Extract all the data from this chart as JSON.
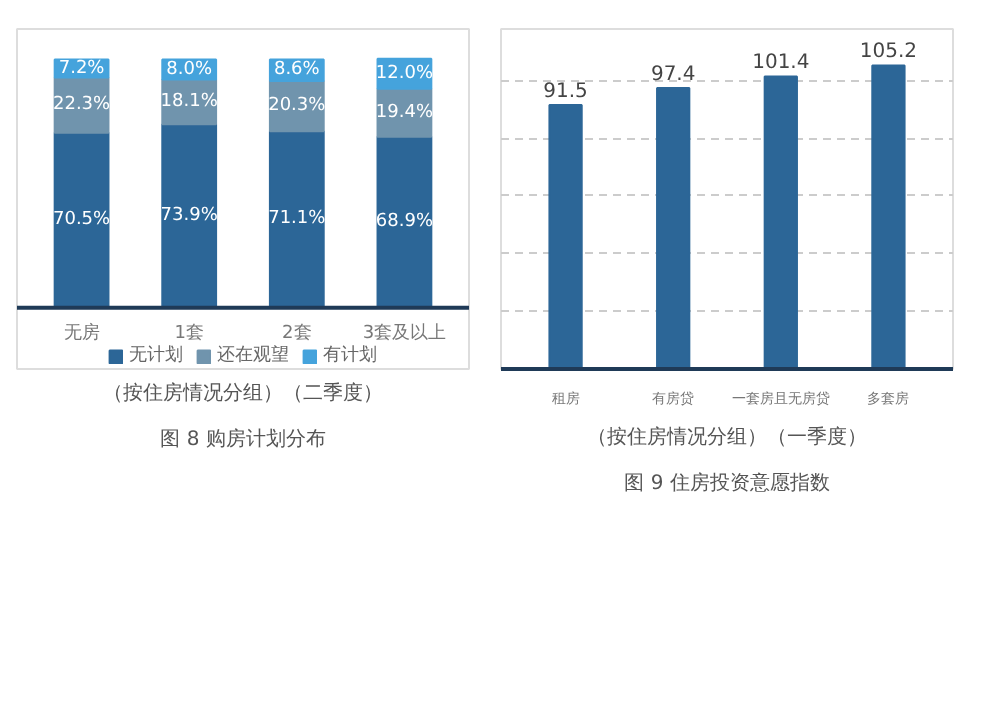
{
  "chart_data": [
    {
      "type": "bar",
      "title": "图 8 购房计划分布",
      "subtitle": "（按住房情况分组）（二季度）",
      "categories": [
        "无房",
        "1套",
        "2套",
        "3套及以上"
      ],
      "stacked": true,
      "legend": "bottom",
      "series": [
        {
          "name": "无计划",
          "color": "#2c6697",
          "values": [
            70.5,
            73.9,
            71.1,
            68.9
          ],
          "value_labels": [
            "70.5%",
            "73.9%",
            "71.1%",
            "68.9%"
          ]
        },
        {
          "name": "还在观望",
          "color": "#7094ad",
          "values": [
            22.3,
            18.1,
            20.3,
            19.4
          ],
          "value_labels": [
            "22.3%",
            "18.1%",
            "20.3%",
            "19.4%"
          ]
        },
        {
          "name": "有计划",
          "color": "#45a3dc",
          "values": [
            7.2,
            8.0,
            8.6,
            12.0
          ],
          "value_labels": [
            "7.2%",
            "8.0%",
            "8.6%",
            "12.0%"
          ]
        }
      ]
    },
    {
      "type": "bar",
      "title": "图 9 住房投资意愿指数",
      "subtitle": "（按住房情况分组）（一季度）",
      "categories": [
        "租房",
        "有房贷",
        "一套房且无房贷",
        "多套房"
      ],
      "values": [
        91.5,
        97.4,
        101.4,
        105.2
      ],
      "color": "#2c6697",
      "data_labels": true,
      "grid": "y"
    }
  ]
}
